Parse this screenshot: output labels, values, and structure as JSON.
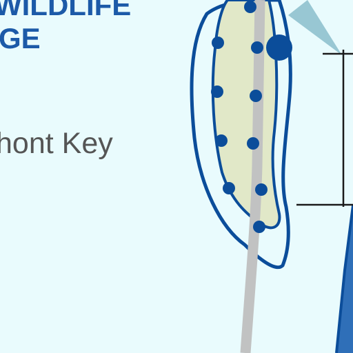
{
  "map": {
    "title_line1": "WILDLIFE",
    "title_line2": "GE",
    "place_label": "hont Key",
    "colors": {
      "background": "#e9fbfd",
      "water_edge": "#0b4d9a",
      "water_fill": "#2f6fb8",
      "land_fill": "#e1e8c8",
      "road": "#c1c2c2",
      "outline": "#0b4d9a",
      "marker": "#0b4d9a",
      "label_dark": "#555555",
      "label_blue": "#1c5aa8",
      "wedge": "#98c7d3",
      "scale_line": "#1a1a1a"
    },
    "icons": [
      "marker-dot",
      "large-marker-dot",
      "direction-wedge",
      "scale-ticks"
    ]
  }
}
